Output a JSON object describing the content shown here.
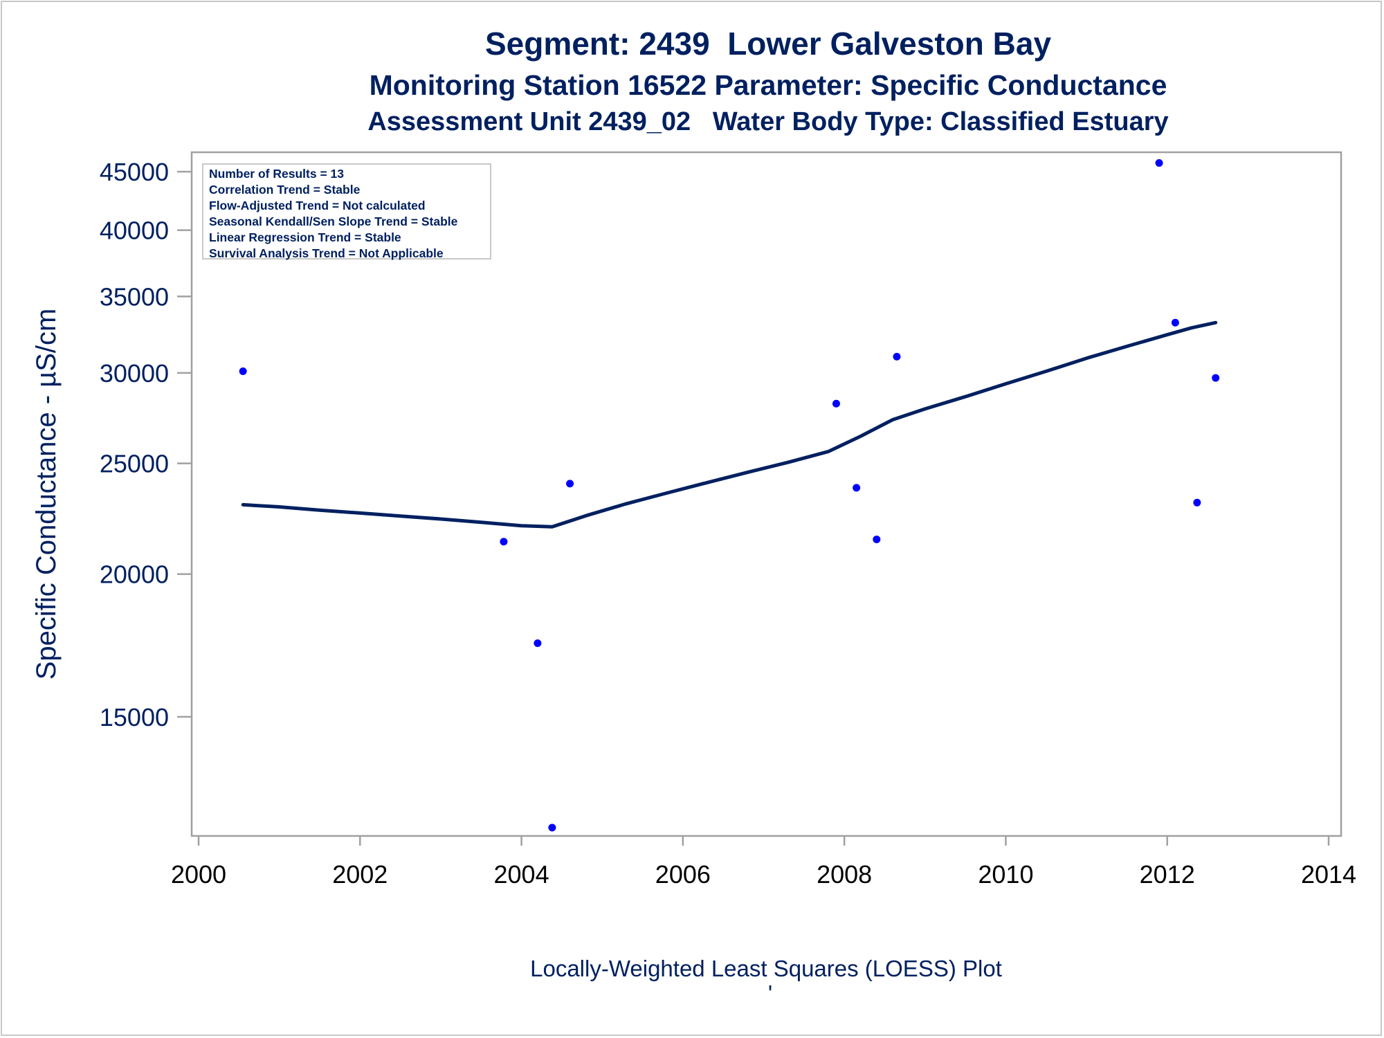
{
  "titles": {
    "line1": "Segment: 2439  Lower Galveston Bay",
    "line2": "Monitoring Station 16522 Parameter: Specific Conductance",
    "line3": "Assessment Unit 2439_02   Water Body Type: Classified Estuary"
  },
  "stats_box": [
    "Number of Results = 13",
    "Correlation Trend = Stable",
    "Flow-Adjusted Trend = Not calculated",
    "Seasonal Kendall/Sen Slope Trend = Stable",
    "Linear Regression Trend = Stable",
    "Survival Analysis Trend = Not Applicable"
  ],
  "footnote": "Locally-Weighted Least Squares (LOESS) Plot",
  "footnote_mark": "'",
  "colors": {
    "text": "#002060",
    "points": "#0000ff",
    "loess_line": "#002060",
    "axis": "#a0a0a0"
  },
  "chart_data": {
    "type": "scatter",
    "ylabel": "Specific Conductance -  µS/cm",
    "xlabel": "",
    "yscale": "log",
    "xlim": [
      2000,
      2014
    ],
    "ylim": [
      11800,
      46800
    ],
    "x_ticks": [
      "2000",
      "2002",
      "2004",
      "2006",
      "2008",
      "2010",
      "2012",
      "2014"
    ],
    "y_ticks": [
      "15000",
      "20000",
      "25000",
      "30000",
      "35000",
      "40000",
      "45000"
    ],
    "series": [
      {
        "type": "scatter",
        "x": [
          2000.55,
          2003.78,
          2004.2,
          2004.38,
          2004.6,
          2007.9,
          2008.15,
          2008.4,
          2008.65,
          2011.9,
          2012.1,
          2012.37,
          2012.6
        ],
        "y": [
          30100,
          21350,
          17400,
          12000,
          24000,
          28200,
          23800,
          21450,
          31000,
          45800,
          33200,
          23100,
          29700
        ]
      },
      {
        "type": "line",
        "x": [
          2000.55,
          2001.0,
          2001.5,
          2002.0,
          2002.5,
          2003.0,
          2003.5,
          2004.0,
          2004.38,
          2004.8,
          2005.3,
          2005.8,
          2006.3,
          2006.8,
          2007.3,
          2007.8,
          2008.2,
          2008.6,
          2009.0,
          2009.5,
          2010.0,
          2010.5,
          2011.0,
          2011.5,
          2012.0,
          2012.3,
          2012.6
        ],
        "y": [
          23000,
          22900,
          22750,
          22620,
          22480,
          22350,
          22200,
          22050,
          22000,
          22500,
          23050,
          23550,
          24050,
          24550,
          25050,
          25600,
          26400,
          27300,
          27900,
          28600,
          29350,
          30100,
          30900,
          31650,
          32400,
          32850,
          33200
        ]
      }
    ]
  }
}
